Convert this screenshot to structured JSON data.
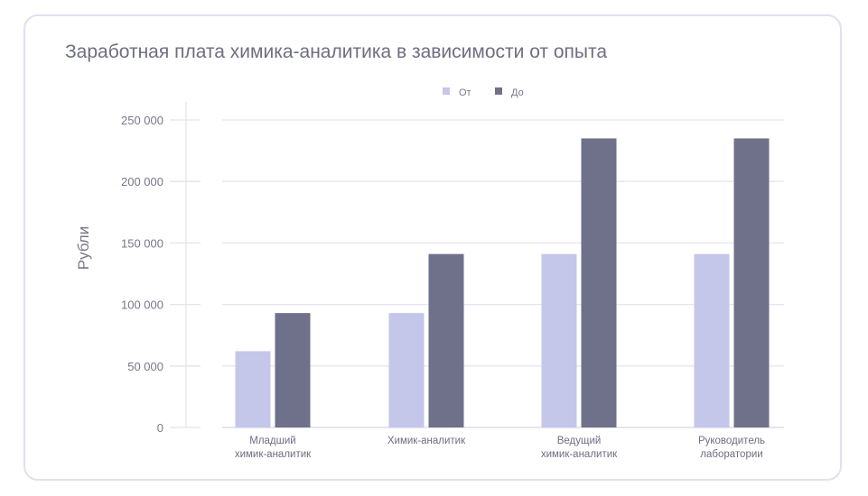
{
  "chart_data": {
    "type": "bar",
    "title": "Заработная плата химика-аналитика в зависимости от опыта",
    "xlabel": "",
    "ylabel": "Рубли",
    "ylim": [
      0,
      250000
    ],
    "yticks": [
      0,
      50000,
      100000,
      150000,
      200000,
      250000
    ],
    "ytick_labels": [
      "0",
      "50 000",
      "100 000",
      "150 000",
      "200 000",
      "250 000"
    ],
    "grid": true,
    "legend_position": "top-center",
    "categories": [
      [
        "Младший",
        "химик-аналитик"
      ],
      [
        "Химик-аналитик"
      ],
      [
        "Ведущий",
        "химик-аналитик"
      ],
      [
        "Руководитель",
        "лаборатории"
      ]
    ],
    "series": [
      {
        "name": "От",
        "color": "#c4c6ea",
        "values": [
          62000,
          93000,
          141000,
          141000
        ]
      },
      {
        "name": "До",
        "color": "#6f7089",
        "values": [
          93000,
          141000,
          235000,
          235000
        ]
      }
    ]
  }
}
